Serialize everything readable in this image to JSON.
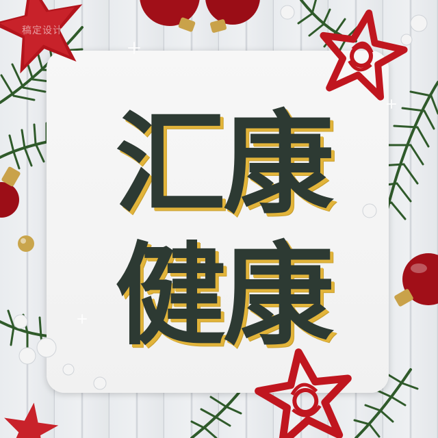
{
  "watermark": "稿定设计",
  "headline": {
    "line1": "汇康",
    "line2": "健康"
  },
  "colors": {
    "text": "#2d3a33",
    "text_shadow": "#e2b43a",
    "card": "#f4f4f4",
    "ornament_red": "#b3141c",
    "pine_green": "#2f5a2a",
    "wood": "#e6e8eb"
  }
}
